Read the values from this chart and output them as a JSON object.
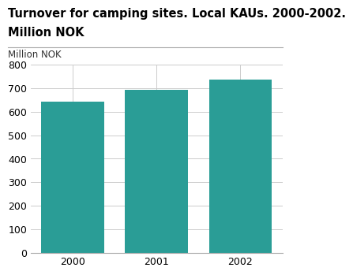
{
  "title_line1": "Turnover for camping sites. Local KAUs. 2000-2002.",
  "title_line2": "Million NOK",
  "ylabel": "Million NOK",
  "categories": [
    "2000",
    "2001",
    "2002"
  ],
  "values": [
    643,
    692,
    737
  ],
  "bar_color": "#2a9d96",
  "ylim": [
    0,
    800
  ],
  "yticks": [
    0,
    100,
    200,
    300,
    400,
    500,
    600,
    700,
    800
  ],
  "background_color": "#ffffff",
  "title_fontsize": 10.5,
  "ylabel_fontsize": 8.5,
  "tick_fontsize": 9
}
